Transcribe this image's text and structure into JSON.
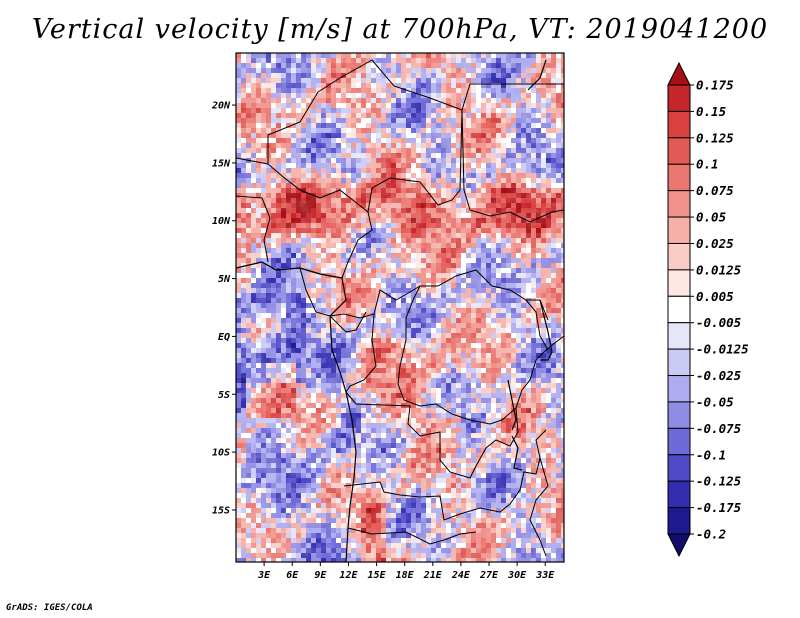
{
  "title": "Vertical velocity [m/s] at 700hPa, VT: 2019041200",
  "footer": "GrADS: IGES/COLA",
  "map": {
    "lat_labels": [
      "20N",
      "15N",
      "10N",
      "5N",
      "EQ",
      "5S",
      "10S",
      "15S"
    ],
    "lon_labels": [
      "3E",
      "6E",
      "9E",
      "12E",
      "15E",
      "18E",
      "21E",
      "24E",
      "27E",
      "30E",
      "33E"
    ],
    "lat_range": [
      -19.5,
      24.5
    ],
    "lon_range": [
      0,
      35
    ],
    "colormap": "blue-white-red diverging"
  },
  "colorbar": {
    "labels": [
      "0.175",
      "0.15",
      "0.125",
      "0.1",
      "0.075",
      "0.05",
      "0.025",
      "0.0125",
      "0.005",
      "-0.005",
      "-0.0125",
      "-0.025",
      "-0.05",
      "-0.075",
      "-0.1",
      "-0.125",
      "-0.175",
      "-0.2"
    ],
    "colors": [
      "#a50f15",
      "#c5262c",
      "#d8413f",
      "#e25a56",
      "#ea7670",
      "#f0928b",
      "#f5b0a8",
      "#f9cdc6",
      "#fde8e4",
      "#ffffff",
      "#e6e6fb",
      "#cbcaf5",
      "#aeacee",
      "#8f8ce4",
      "#6e6ad8",
      "#4e49c7",
      "#332db1",
      "#1e1a90",
      "#110d6c"
    ]
  }
}
